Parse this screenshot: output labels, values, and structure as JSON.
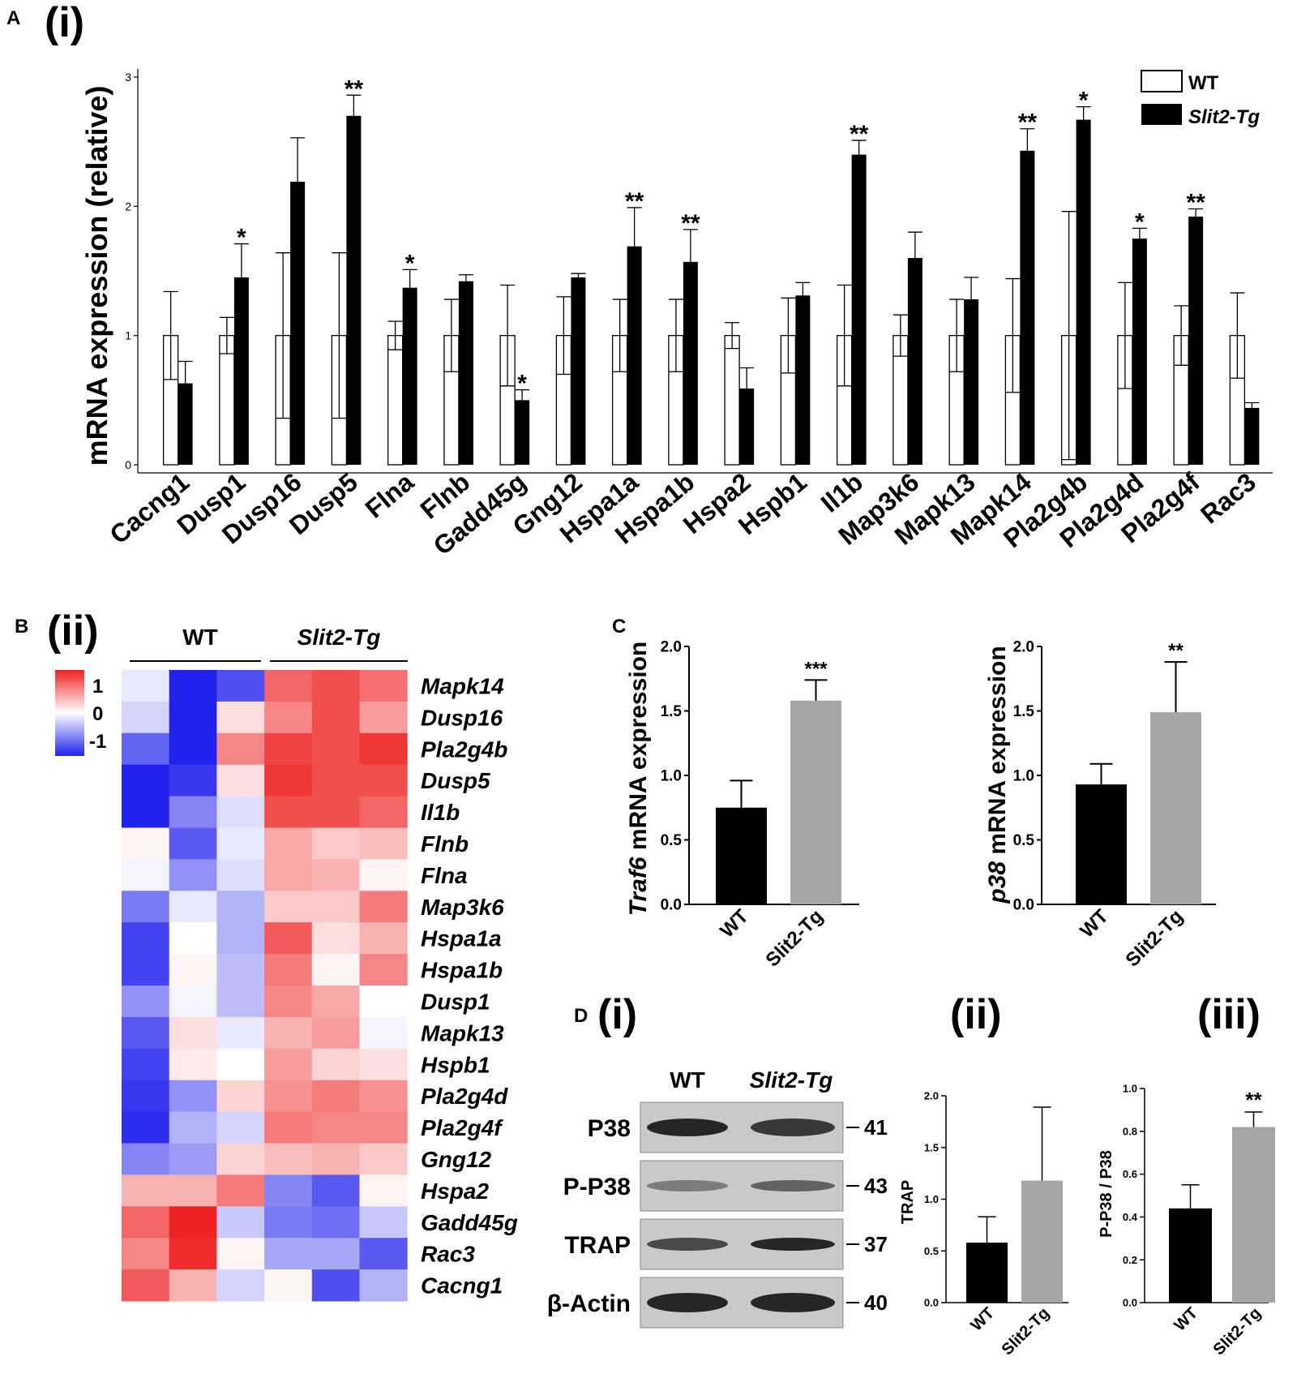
{
  "panels": {
    "A": "A",
    "A_sub": "(i)",
    "B": "B",
    "B_sub": "(ii)",
    "C": "C",
    "D": "D",
    "D_sub1": "(i)",
    "D_sub2": "(ii)",
    "D_sub3": "(iii)"
  },
  "colors": {
    "wt_bar_fill": "#ffffff",
    "tg_bar_fill": "#000000",
    "c_wt": "#000000",
    "c_tg": "#a6a6a6",
    "heat_low": "#2222ee",
    "heat_mid": "#ffffff",
    "heat_high": "#ee2222"
  },
  "chart_data": [
    {
      "id": "A",
      "type": "bar",
      "title": "",
      "ylabel": "mRNA expression (relative)",
      "ylim": [
        0,
        3
      ],
      "yticks": [
        "0",
        "1",
        "2",
        "3"
      ],
      "legend": [
        "WT",
        "Slit2-Tg"
      ],
      "legend_position": "top-right",
      "categories": [
        "Cacng1",
        "Dusp1",
        "Dusp16",
        "Dusp5",
        "Flna",
        "Flnb",
        "Gadd45g",
        "Gng12",
        "Hspa1a",
        "Hspa1b",
        "Hspa2",
        "Hspb1",
        "Il1b",
        "Map3k6",
        "Mapk13",
        "Mapk14",
        "Pla2g4b",
        "Pla2g4d",
        "Pla2g4f",
        "Rac3"
      ],
      "series": [
        {
          "name": "WT",
          "values": [
            1,
            1,
            1,
            1,
            1,
            1,
            1,
            1,
            1,
            1,
            1,
            1,
            1,
            1,
            1,
            1,
            1,
            1,
            1,
            1
          ],
          "err_upper": [
            1.34,
            1.14,
            1.64,
            1.64,
            1.11,
            1.28,
            1.39,
            1.3,
            1.28,
            1.28,
            1.1,
            1.29,
            1.39,
            1.16,
            1.28,
            1.44,
            1.96,
            1.41,
            1.23,
            1.33
          ],
          "err_lower": [
            0.66,
            0.86,
            0.36,
            0.36,
            0.89,
            0.72,
            0.61,
            0.7,
            0.72,
            0.72,
            0.9,
            0.71,
            0.61,
            0.84,
            0.72,
            0.56,
            0.04,
            0.59,
            0.77,
            0.67
          ]
        },
        {
          "name": "Slit2-Tg",
          "values": [
            0.63,
            1.45,
            2.19,
            2.7,
            1.37,
            1.42,
            0.5,
            1.45,
            1.69,
            1.57,
            0.59,
            1.31,
            2.4,
            1.6,
            1.28,
            2.43,
            2.67,
            1.75,
            1.92,
            0.44
          ],
          "err_upper": [
            0.8,
            1.71,
            2.53,
            2.86,
            1.51,
            1.47,
            0.58,
            1.48,
            1.99,
            1.82,
            0.75,
            1.41,
            2.51,
            1.8,
            1.45,
            2.6,
            2.77,
            1.83,
            1.98,
            0.48
          ]
        }
      ],
      "significance": [
        "",
        "*",
        "",
        "**",
        "*",
        "",
        "*",
        "",
        "**",
        "**",
        "",
        "",
        "**",
        "",
        "",
        "**",
        "*",
        "*",
        "**",
        ""
      ]
    },
    {
      "id": "B",
      "type": "heatmap",
      "column_groups": [
        "WT",
        "Slit2-Tg"
      ],
      "rows": [
        "Mapk14",
        "Dusp16",
        "Pla2g4b",
        "Dusp5",
        "Il1b",
        "Flnb",
        "Flna",
        "Map3k6",
        "Hspa1a",
        "Hspa1b",
        "Dusp1",
        "Mapk13",
        "Hspb1",
        "Pla2g4d",
        "Pla2g4f",
        "Gng12",
        "Hspa2",
        "Gadd45g",
        "Rac3",
        "Cacng1"
      ],
      "values": [
        [
          -0.1,
          -1.0,
          -0.8,
          0.7,
          0.8,
          0.65
        ],
        [
          -0.2,
          -1.0,
          0.15,
          0.55,
          0.8,
          0.45
        ],
        [
          -0.7,
          -1.0,
          0.55,
          0.85,
          0.8,
          0.9
        ],
        [
          -1.0,
          -0.9,
          0.15,
          0.9,
          0.8,
          0.8
        ],
        [
          -1.0,
          -0.55,
          -0.15,
          0.8,
          0.8,
          0.7
        ],
        [
          0.05,
          -0.75,
          -0.1,
          0.4,
          0.25,
          0.3
        ],
        [
          -0.05,
          -0.5,
          -0.15,
          0.4,
          0.35,
          0.05
        ],
        [
          -0.6,
          -0.1,
          -0.35,
          0.25,
          0.25,
          0.6
        ],
        [
          -0.85,
          0.0,
          -0.35,
          0.75,
          0.15,
          0.35
        ],
        [
          -0.85,
          0.05,
          -0.3,
          0.6,
          0.05,
          0.55
        ],
        [
          -0.5,
          -0.05,
          -0.3,
          0.55,
          0.4,
          0.0
        ],
        [
          -0.75,
          0.15,
          -0.1,
          0.35,
          0.45,
          -0.05
        ],
        [
          -0.85,
          0.1,
          0.0,
          0.45,
          0.2,
          0.15
        ],
        [
          -0.9,
          -0.5,
          0.2,
          0.5,
          0.6,
          0.5
        ],
        [
          -0.95,
          -0.35,
          -0.2,
          0.6,
          0.55,
          0.55
        ],
        [
          -0.55,
          -0.45,
          0.2,
          0.3,
          0.35,
          0.25
        ],
        [
          0.35,
          0.35,
          0.6,
          -0.55,
          -0.75,
          0.05
        ],
        [
          0.7,
          1.0,
          -0.25,
          -0.6,
          -0.65,
          -0.25
        ],
        [
          0.55,
          0.95,
          0.05,
          -0.4,
          -0.4,
          -0.75
        ],
        [
          0.75,
          0.35,
          -0.2,
          0.05,
          -0.8,
          -0.35
        ]
      ],
      "scale": {
        "max_label": "1",
        "mid_label": "0",
        "min_label": "-1"
      }
    },
    {
      "id": "C1",
      "type": "bar",
      "ylabel_italic": "Traf6",
      "ylabel_rest": " mRNA expression",
      "ylim": [
        0,
        2
      ],
      "yticks": [
        "0.0",
        "0.5",
        "1.0",
        "1.5",
        "2.0"
      ],
      "categories": [
        "WT",
        "Slit2-Tg"
      ],
      "values": [
        0.75,
        1.58
      ],
      "err_upper": [
        0.96,
        1.74
      ],
      "significance": [
        "",
        "***"
      ]
    },
    {
      "id": "C2",
      "type": "bar",
      "ylabel_italic": "p38",
      "ylabel_rest": " mRNA expression",
      "ylim": [
        0,
        2
      ],
      "yticks": [
        "0.0",
        "0.5",
        "1.0",
        "1.5",
        "2.0"
      ],
      "categories": [
        "WT",
        "Slit2-Tg"
      ],
      "values": [
        0.93,
        1.49
      ],
      "err_upper": [
        1.09,
        1.88
      ],
      "significance": [
        "",
        "**"
      ]
    },
    {
      "id": "D2",
      "type": "bar",
      "ylabel": "TRAP",
      "ylim": [
        0,
        2
      ],
      "yticks": [
        "0.0",
        "0.5",
        "1.0",
        "1.5",
        "2.0"
      ],
      "categories": [
        "WT",
        "Slit2-Tg"
      ],
      "values": [
        0.58,
        1.18
      ],
      "err_upper": [
        0.83,
        1.89
      ],
      "significance": [
        "",
        ""
      ]
    },
    {
      "id": "D3",
      "type": "bar",
      "ylabel": "P-P38 / P38",
      "ylim": [
        0,
        1
      ],
      "yticks": [
        "0.0",
        "0.2",
        "0.4",
        "0.6",
        "0.8",
        "1.0"
      ],
      "categories": [
        "WT",
        "Slit2-Tg"
      ],
      "values": [
        0.44,
        0.82
      ],
      "err_upper": [
        0.55,
        0.89
      ],
      "significance": [
        "",
        "**"
      ]
    }
  ],
  "blot": {
    "columns": [
      "WT",
      "Slit2-Tg"
    ],
    "rows": [
      {
        "label": "P38",
        "marker": "41"
      },
      {
        "label": "P-P38",
        "marker": "43"
      },
      {
        "label": "TRAP",
        "marker": "37"
      },
      {
        "label": "β-Actin",
        "marker": "40"
      }
    ]
  }
}
